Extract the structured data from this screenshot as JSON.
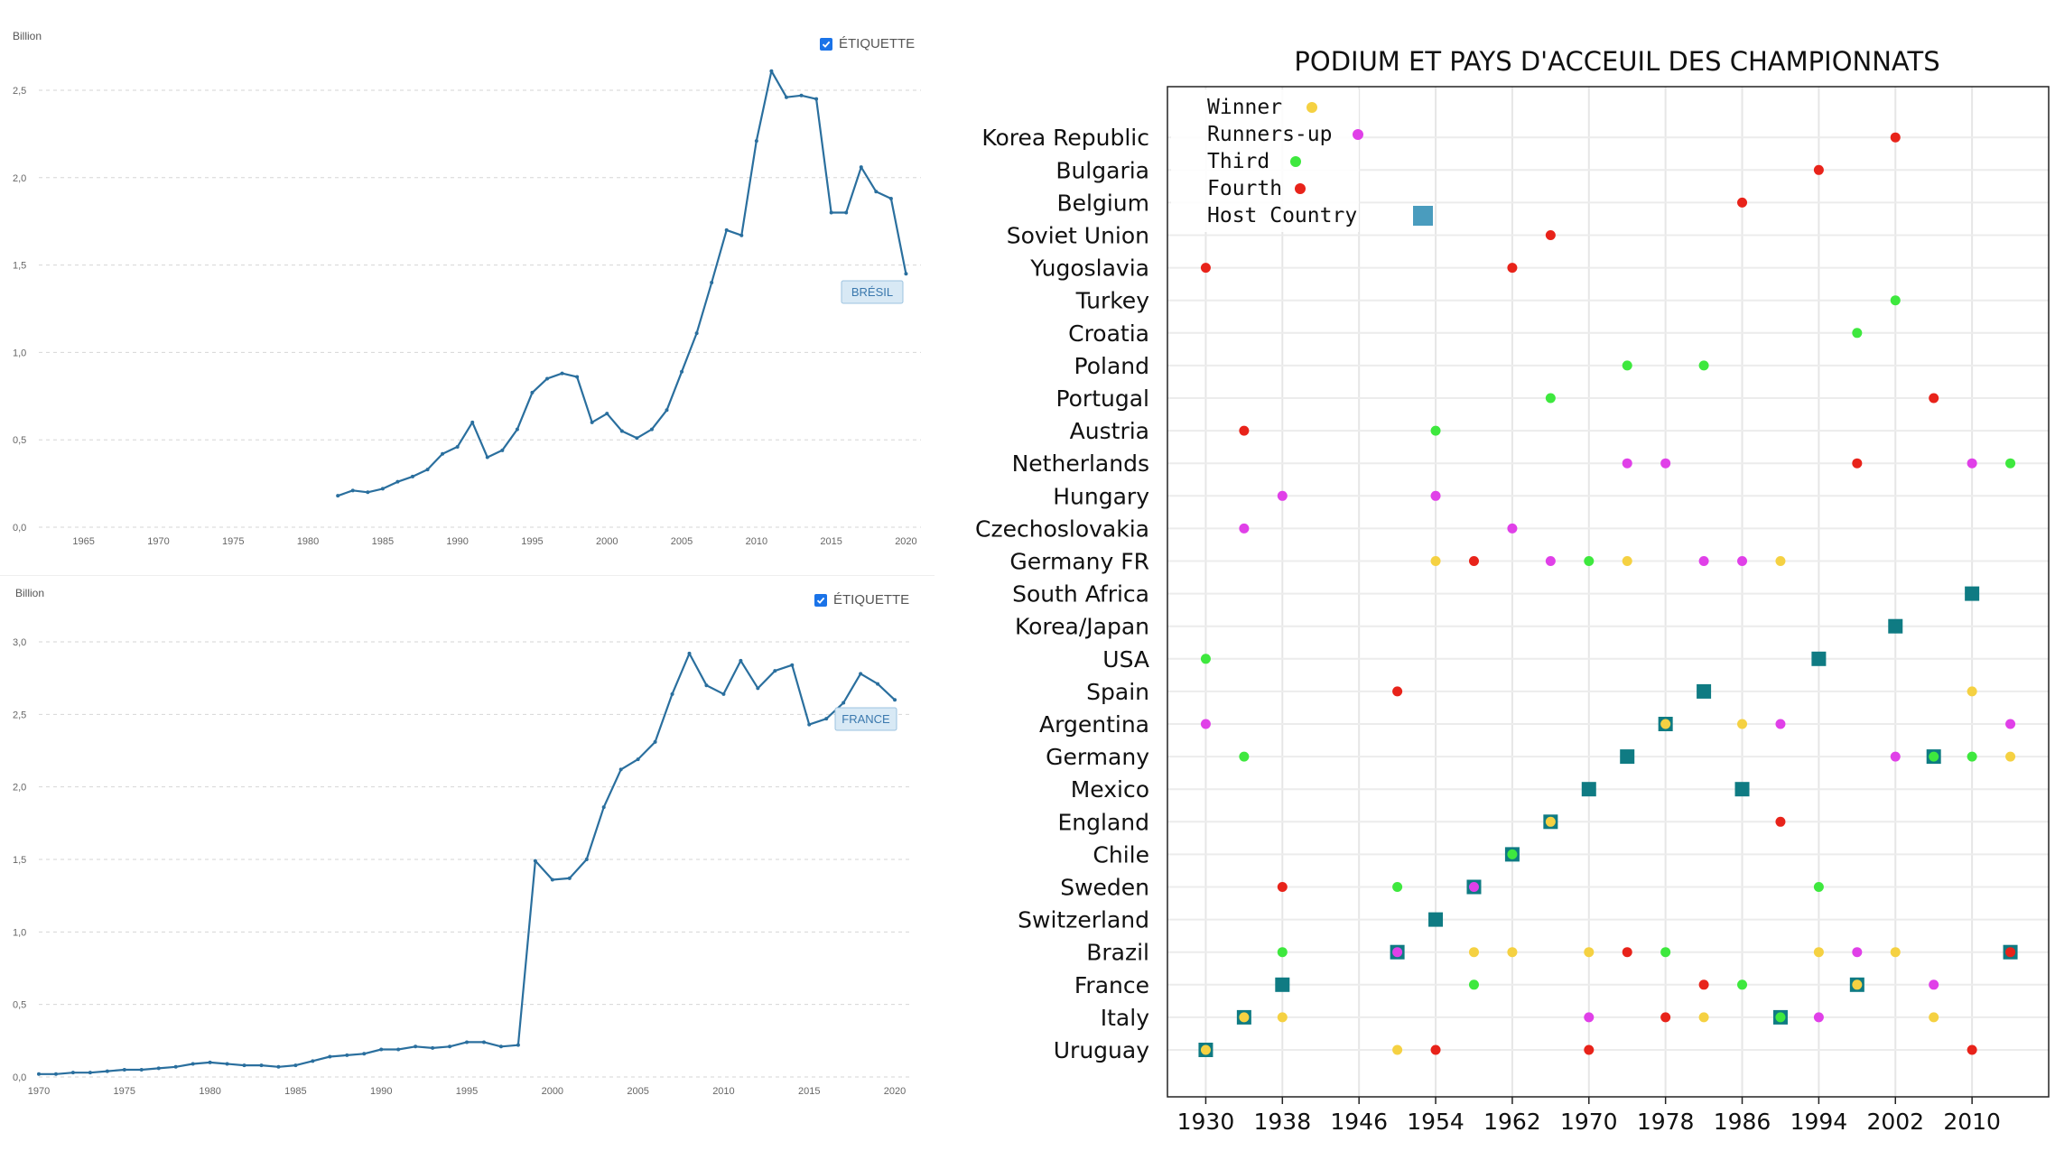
{
  "colors": {
    "line": "#2a6f9e",
    "grid": "#d6d6d6",
    "axis_text": "#666666",
    "tag_bg": "#d8e9f5",
    "tag_border": "#9cc3e0",
    "tag_text": "#3a78ad",
    "checkbox": "#1a73e8"
  },
  "brazil_panel": {
    "unit_label": "Billion",
    "toggle_label": "ÉTIQUETTE",
    "toggle_checked": true,
    "checkbox_icon": "checkbox-checked-icon"
  },
  "france_panel": {
    "unit_label": "Billion",
    "toggle_label": "ÉTIQUETTE",
    "toggle_checked": true,
    "checkbox_icon": "checkbox-checked-icon"
  },
  "chart_data": [
    {
      "type": "line",
      "series": [
        {
          "name": "BRÉSIL",
          "x": [
            1982,
            1983,
            1984,
            1985,
            1986,
            1987,
            1988,
            1989,
            1990,
            1991,
            1992,
            1993,
            1994,
            1995,
            1996,
            1997,
            1998,
            1999,
            2000,
            2001,
            2002,
            2003,
            2004,
            2005,
            2006,
            2007,
            2008,
            2009,
            2010,
            2011,
            2012,
            2013,
            2014,
            2015,
            2016,
            2017,
            2018,
            2019,
            2020
          ],
          "values": [
            0.18,
            0.21,
            0.2,
            0.22,
            0.26,
            0.29,
            0.33,
            0.42,
            0.46,
            0.6,
            0.4,
            0.44,
            0.56,
            0.77,
            0.85,
            0.88,
            0.86,
            0.6,
            0.65,
            0.55,
            0.51,
            0.56,
            0.67,
            0.89,
            1.11,
            1.4,
            1.7,
            1.67,
            2.21,
            2.61,
            2.46,
            2.47,
            2.45,
            1.8,
            1.8,
            2.06,
            1.92,
            1.88,
            1.45
          ]
        }
      ],
      "xlim": [
        1962,
        2021
      ],
      "ylim": [
        0,
        2.5
      ],
      "x_ticks": [
        "1965",
        "1970",
        "1975",
        "1980",
        "1985",
        "1990",
        "1995",
        "2000",
        "2005",
        "2010",
        "2015",
        "2020"
      ],
      "y_ticks": [
        "0,0",
        "0,5",
        "1,0",
        "1,5",
        "2,0",
        "2,5"
      ],
      "y_tick_values": [
        0,
        0.5,
        1.0,
        1.5,
        2.0,
        2.5
      ],
      "grid": "horizontal dashed",
      "ylabel": "Billion"
    },
    {
      "type": "line",
      "series": [
        {
          "name": "FRANCE",
          "x": [
            1970,
            1971,
            1972,
            1973,
            1974,
            1975,
            1976,
            1977,
            1978,
            1979,
            1980,
            1981,
            1982,
            1983,
            1984,
            1985,
            1986,
            1987,
            1988,
            1989,
            1990,
            1991,
            1992,
            1993,
            1994,
            1995,
            1996,
            1997,
            1998,
            1999,
            2000,
            2001,
            2002,
            2003,
            2004,
            2005,
            2006,
            2007,
            2008,
            2009,
            2010,
            2011,
            2012,
            2013,
            2014,
            2015,
            2016,
            2017,
            2018,
            2019,
            2020
          ],
          "values": [
            0.02,
            0.02,
            0.03,
            0.03,
            0.04,
            0.05,
            0.05,
            0.06,
            0.07,
            0.09,
            0.1,
            0.09,
            0.08,
            0.08,
            0.07,
            0.08,
            0.11,
            0.14,
            0.15,
            0.16,
            0.19,
            0.19,
            0.21,
            0.2,
            0.21,
            0.24,
            0.24,
            0.21,
            0.22,
            1.49,
            1.36,
            1.37,
            1.5,
            1.86,
            2.12,
            2.19,
            2.31,
            2.64,
            2.92,
            2.7,
            2.64,
            2.87,
            2.68,
            2.8,
            2.84,
            2.43,
            2.47,
            2.58,
            2.78,
            2.71,
            2.6
          ]
        }
      ],
      "xlim": [
        1970,
        2021
      ],
      "ylim": [
        0,
        3.0
      ],
      "x_ticks": [
        "1970",
        "1975",
        "1980",
        "1985",
        "1990",
        "1995",
        "2000",
        "2005",
        "2010",
        "2015",
        "2020"
      ],
      "y_ticks": [
        "0,0",
        "0,5",
        "1,0",
        "1,5",
        "2,0",
        "2,5",
        "3,0"
      ],
      "y_tick_values": [
        0,
        0.5,
        1.0,
        1.5,
        2.0,
        2.5,
        3.0
      ],
      "grid": "horizontal dashed",
      "ylabel": "Billion"
    },
    {
      "type": "scatter",
      "title": "PODIUM ET PAYS D'ACCEUIL DES CHAMPIONNATS",
      "categories": [
        "Uruguay",
        "Italy",
        "France",
        "Brazil",
        "Switzerland",
        "Sweden",
        "Chile",
        "England",
        "Mexico",
        "Germany",
        "Argentina",
        "Spain",
        "USA",
        "Korea/Japan",
        "South Africa",
        "Germany FR",
        "Czechoslovakia",
        "Hungary",
        "Netherlands",
        "Austria",
        "Portugal",
        "Poland",
        "Croatia",
        "Turkey",
        "Yugoslavia",
        "Soviet Union",
        "Belgium",
        "Bulgaria",
        "Korea Republic"
      ],
      "x_ticks": [
        "1930",
        "1938",
        "1946",
        "1954",
        "1962",
        "1970",
        "1978",
        "1986",
        "1994",
        "2002",
        "2010"
      ],
      "x_tick_values": [
        1930,
        1938,
        1946,
        1954,
        1962,
        1970,
        1978,
        1986,
        1994,
        2002,
        2010
      ],
      "xlim": [
        1926,
        2018
      ],
      "legend": {
        "placement": "top-left",
        "entries": [
          {
            "label": "Winner",
            "color": "#f5d142",
            "marker": "dot"
          },
          {
            "label": "Runners-up",
            "color": "#e040e8",
            "marker": "dot"
          },
          {
            "label": "Third",
            "color": "#3ee83e",
            "marker": "dot"
          },
          {
            "label": "Fourth",
            "color": "#e8231a",
            "marker": "dot"
          },
          {
            "label": "Host Country",
            "color": "#4a9cbe",
            "marker": "square"
          }
        ]
      },
      "grid": true,
      "hosts": [
        {
          "year": 1930,
          "country": "Uruguay"
        },
        {
          "year": 1934,
          "country": "Italy"
        },
        {
          "year": 1938,
          "country": "France"
        },
        {
          "year": 1950,
          "country": "Brazil"
        },
        {
          "year": 1954,
          "country": "Switzerland"
        },
        {
          "year": 1958,
          "country": "Sweden"
        },
        {
          "year": 1962,
          "country": "Chile"
        },
        {
          "year": 1966,
          "country": "England"
        },
        {
          "year": 1970,
          "country": "Mexico"
        },
        {
          "year": 1974,
          "country": "Germany"
        },
        {
          "year": 1978,
          "country": "Argentina"
        },
        {
          "year": 1982,
          "country": "Spain"
        },
        {
          "year": 1986,
          "country": "Mexico"
        },
        {
          "year": 1990,
          "country": "Italy"
        },
        {
          "year": 1994,
          "country": "USA"
        },
        {
          "year": 1998,
          "country": "France"
        },
        {
          "year": 2002,
          "country": "Korea/Japan"
        },
        {
          "year": 2006,
          "country": "Germany"
        },
        {
          "year": 2010,
          "country": "South Africa"
        },
        {
          "year": 2014,
          "country": "Brazil"
        }
      ],
      "podium": [
        {
          "year": 1930,
          "winner": "Uruguay",
          "runner_up": "Argentina",
          "third": "USA",
          "fourth": "Yugoslavia"
        },
        {
          "year": 1934,
          "winner": "Italy",
          "runner_up": "Czechoslovakia",
          "third": "Germany",
          "fourth": "Austria"
        },
        {
          "year": 1938,
          "winner": "Italy",
          "runner_up": "Hungary",
          "third": "Brazil",
          "fourth": "Sweden"
        },
        {
          "year": 1950,
          "winner": "Uruguay",
          "runner_up": "Brazil",
          "third": "Sweden",
          "fourth": "Spain"
        },
        {
          "year": 1954,
          "winner": "Germany FR",
          "runner_up": "Hungary",
          "third": "Austria",
          "fourth": "Uruguay"
        },
        {
          "year": 1958,
          "winner": "Brazil",
          "runner_up": "Sweden",
          "third": "France",
          "fourth": "Germany FR"
        },
        {
          "year": 1962,
          "winner": "Brazil",
          "runner_up": "Czechoslovakia",
          "third": "Chile",
          "fourth": "Yugoslavia"
        },
        {
          "year": 1966,
          "winner": "England",
          "runner_up": "Germany FR",
          "third": "Portugal",
          "fourth": "Soviet Union"
        },
        {
          "year": 1970,
          "winner": "Brazil",
          "runner_up": "Italy",
          "third": "Germany FR",
          "fourth": "Uruguay"
        },
        {
          "year": 1974,
          "winner": "Germany FR",
          "runner_up": "Netherlands",
          "third": "Poland",
          "fourth": "Brazil"
        },
        {
          "year": 1978,
          "winner": "Argentina",
          "runner_up": "Netherlands",
          "third": "Brazil",
          "fourth": "Italy"
        },
        {
          "year": 1982,
          "winner": "Italy",
          "runner_up": "Germany FR",
          "third": "Poland",
          "fourth": "France"
        },
        {
          "year": 1986,
          "winner": "Argentina",
          "runner_up": "Germany FR",
          "third": "France",
          "fourth": "Belgium"
        },
        {
          "year": 1990,
          "winner": "Germany FR",
          "runner_up": "Argentina",
          "third": "Italy",
          "fourth": "England"
        },
        {
          "year": 1994,
          "winner": "Brazil",
          "runner_up": "Italy",
          "third": "Sweden",
          "fourth": "Bulgaria"
        },
        {
          "year": 1998,
          "winner": "France",
          "runner_up": "Brazil",
          "third": "Croatia",
          "fourth": "Netherlands"
        },
        {
          "year": 2002,
          "winner": "Brazil",
          "runner_up": "Germany",
          "third": "Turkey",
          "fourth": "Korea Republic"
        },
        {
          "year": 2006,
          "winner": "Italy",
          "runner_up": "France",
          "third": "Germany",
          "fourth": "Portugal"
        },
        {
          "year": 2010,
          "winner": "Spain",
          "runner_up": "Netherlands",
          "third": "Germany",
          "fourth": "Uruguay"
        },
        {
          "year": 2014,
          "winner": "Germany",
          "runner_up": "Argentina",
          "third": "Netherlands",
          "fourth": "Brazil"
        }
      ]
    }
  ]
}
